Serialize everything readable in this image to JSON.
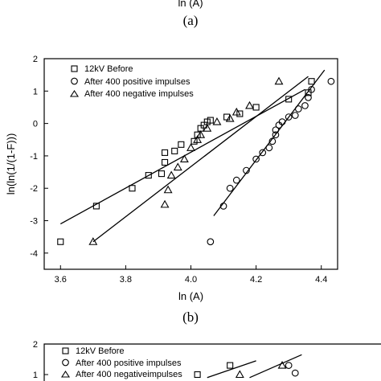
{
  "top_panel": {
    "axis_fragment": "ln (A)",
    "caption": "(a)"
  },
  "chart_data": [
    {
      "panel_caption": "(b)",
      "type": "scatter",
      "xlabel": "ln (A)",
      "ylabel": "ln(ln(1/(1-F)))",
      "xlim": [
        3.55,
        4.45
      ],
      "ylim": [
        -4.5,
        2
      ],
      "xticks": [
        3.6,
        3.8,
        4.0,
        4.2,
        4.4
      ],
      "yticks": [
        -4,
        -3,
        -2,
        -1,
        0,
        1,
        2
      ],
      "legend_position": "top-left",
      "series": [
        {
          "name": "12kV Before",
          "marker": "square",
          "points": [
            [
              3.6,
              -3.65
            ],
            [
              3.71,
              -2.55
            ],
            [
              3.82,
              -2.0
            ],
            [
              3.87,
              -1.6
            ],
            [
              3.91,
              -1.55
            ],
            [
              3.92,
              -1.2
            ],
            [
              3.92,
              -0.9
            ],
            [
              3.95,
              -0.85
            ],
            [
              3.97,
              -0.65
            ],
            [
              4.01,
              -0.55
            ],
            [
              4.02,
              -0.35
            ],
            [
              4.03,
              -0.15
            ],
            [
              4.04,
              -0.05
            ],
            [
              4.05,
              0.05
            ],
            [
              4.06,
              0.1
            ],
            [
              4.11,
              0.2
            ],
            [
              4.15,
              0.3
            ],
            [
              4.2,
              0.5
            ],
            [
              4.3,
              0.75
            ],
            [
              4.36,
              0.95
            ],
            [
              4.37,
              1.3
            ]
          ],
          "fit": [
            [
              3.6,
              -3.1
            ],
            [
              4.35,
              1.05
            ]
          ]
        },
        {
          "name": "After 400 positive impulses",
          "marker": "circle",
          "points": [
            [
              4.06,
              -3.65
            ],
            [
              4.1,
              -2.55
            ],
            [
              4.12,
              -2.0
            ],
            [
              4.14,
              -1.75
            ],
            [
              4.17,
              -1.45
            ],
            [
              4.2,
              -1.1
            ],
            [
              4.22,
              -0.9
            ],
            [
              4.24,
              -0.75
            ],
            [
              4.25,
              -0.55
            ],
            [
              4.26,
              -0.35
            ],
            [
              4.26,
              -0.2
            ],
            [
              4.27,
              -0.05
            ],
            [
              4.28,
              0.05
            ],
            [
              4.3,
              0.2
            ],
            [
              4.32,
              0.25
            ],
            [
              4.33,
              0.45
            ],
            [
              4.35,
              0.55
            ],
            [
              4.36,
              0.8
            ],
            [
              4.37,
              1.05
            ],
            [
              4.43,
              1.3
            ]
          ],
          "fit": [
            [
              4.07,
              -2.85
            ],
            [
              4.41,
              1.65
            ]
          ]
        },
        {
          "name": "After 400 negative impulses",
          "marker": "triangle",
          "points": [
            [
              3.7,
              -3.65
            ],
            [
              3.92,
              -2.5
            ],
            [
              3.93,
              -2.05
            ],
            [
              3.94,
              -1.6
            ],
            [
              3.96,
              -1.35
            ],
            [
              3.98,
              -1.1
            ],
            [
              4.0,
              -0.75
            ],
            [
              4.02,
              -0.5
            ],
            [
              4.03,
              -0.35
            ],
            [
              4.05,
              -0.15
            ],
            [
              4.08,
              0.05
            ],
            [
              4.12,
              0.15
            ],
            [
              4.14,
              0.35
            ],
            [
              4.18,
              0.55
            ],
            [
              4.27,
              1.3
            ]
          ],
          "fit": [
            [
              3.7,
              -3.65
            ],
            [
              4.36,
              1.45
            ]
          ]
        }
      ]
    },
    {
      "panel_caption": "",
      "type": "scatter",
      "ylim_visible": [
        1,
        2
      ],
      "yticks": [
        1,
        2
      ],
      "legend_position": "top-left",
      "series": [
        {
          "name": "12kV Before",
          "marker": "square",
          "points": [
            [
              4.02,
              1.0
            ],
            [
              4.12,
              1.3
            ]
          ],
          "fit": []
        },
        {
          "name": "After 400 positive impulses",
          "marker": "circle",
          "points": [
            [
              4.3,
              1.3
            ],
            [
              4.32,
              1.05
            ]
          ],
          "fit": [
            [
              4.18,
              0.9
            ],
            [
              4.34,
              1.65
            ]
          ]
        },
        {
          "name": "After 400 negativeimpulses",
          "marker": "triangle",
          "points": [
            [
              4.15,
              1.0
            ],
            [
              4.28,
              1.3
            ]
          ],
          "fit": [
            [
              4.05,
              0.9
            ],
            [
              4.2,
              1.45
            ]
          ]
        }
      ]
    }
  ]
}
